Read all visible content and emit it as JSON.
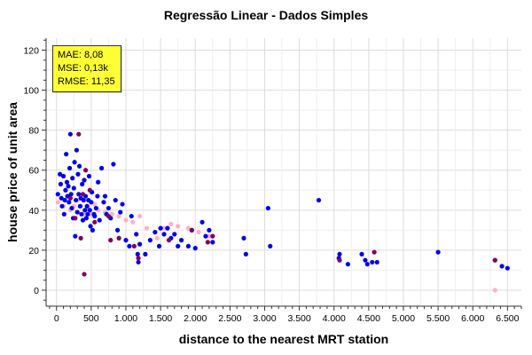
{
  "chart_data": {
    "type": "scatter",
    "title": "Regressão Linear - Dados Simples",
    "xlabel": "distance to the nearest MRT station",
    "ylabel": "house price of unit area",
    "xlim": [
      -150,
      6700
    ],
    "ylim": [
      -8,
      126
    ],
    "grid": true,
    "x_ticks": [
      {
        "value": 0,
        "label": "0"
      },
      {
        "value": 500,
        "label": "500"
      },
      {
        "value": 1000,
        "label": "1.000"
      },
      {
        "value": 1500,
        "label": "1.500"
      },
      {
        "value": 2000,
        "label": "2.000"
      },
      {
        "value": 2500,
        "label": "2.500"
      },
      {
        "value": 3000,
        "label": "3.000"
      },
      {
        "value": 3500,
        "label": "3.500"
      },
      {
        "value": 4000,
        "label": "4.000"
      },
      {
        "value": 4500,
        "label": "4.500"
      },
      {
        "value": 5000,
        "label": "5.000"
      },
      {
        "value": 5500,
        "label": "5.500"
      },
      {
        "value": 6000,
        "label": "6.000"
      },
      {
        "value": 6500,
        "label": "6.500"
      }
    ],
    "y_ticks": [
      {
        "value": 0,
        "label": "0"
      },
      {
        "value": 20,
        "label": "20"
      },
      {
        "value": 40,
        "label": "40"
      },
      {
        "value": 60,
        "label": "60"
      },
      {
        "value": 80,
        "label": "80"
      },
      {
        "value": 100,
        "label": "100"
      },
      {
        "value": 120,
        "label": "120"
      }
    ],
    "series": [
      {
        "color": "#0000ee",
        "points": [
          [
            20,
            48
          ],
          [
            50,
            58
          ],
          [
            60,
            53
          ],
          [
            70,
            46
          ],
          [
            80,
            42
          ],
          [
            100,
            57
          ],
          [
            110,
            38
          ],
          [
            120,
            45
          ],
          [
            130,
            50
          ],
          [
            140,
            68
          ],
          [
            150,
            54
          ],
          [
            160,
            47
          ],
          [
            170,
            52
          ],
          [
            180,
            44
          ],
          [
            190,
            61
          ],
          [
            200,
            78
          ],
          [
            210,
            48
          ],
          [
            220,
            41
          ],
          [
            230,
            56
          ],
          [
            240,
            36
          ],
          [
            250,
            51
          ],
          [
            260,
            64
          ],
          [
            270,
            27
          ],
          [
            280,
            45
          ],
          [
            290,
            70
          ],
          [
            300,
            39
          ],
          [
            310,
            58
          ],
          [
            320,
            48
          ],
          [
            330,
            62
          ],
          [
            340,
            42
          ],
          [
            350,
            46
          ],
          [
            360,
            38
          ],
          [
            370,
            53
          ],
          [
            380,
            35
          ],
          [
            390,
            45
          ],
          [
            400,
            55
          ],
          [
            410,
            40
          ],
          [
            420,
            47
          ],
          [
            430,
            36
          ],
          [
            440,
            42
          ],
          [
            450,
            38
          ],
          [
            460,
            45
          ],
          [
            470,
            57
          ],
          [
            480,
            40
          ],
          [
            490,
            32
          ],
          [
            500,
            44
          ],
          [
            510,
            49
          ],
          [
            520,
            30
          ],
          [
            540,
            38
          ],
          [
            550,
            37
          ],
          [
            570,
            41
          ],
          [
            590,
            47
          ],
          [
            600,
            54
          ],
          [
            620,
            35
          ],
          [
            650,
            61
          ],
          [
            680,
            44
          ],
          [
            700,
            47
          ],
          [
            720,
            38
          ],
          [
            750,
            41
          ],
          [
            780,
            36
          ],
          [
            820,
            63
          ],
          [
            850,
            45
          ],
          [
            880,
            30
          ],
          [
            920,
            39
          ],
          [
            950,
            43
          ],
          [
            1000,
            25
          ],
          [
            1050,
            22
          ],
          [
            1080,
            37
          ],
          [
            1150,
            28
          ],
          [
            1170,
            18
          ],
          [
            1180,
            14
          ],
          [
            1200,
            23
          ],
          [
            1280,
            18
          ],
          [
            1350,
            25
          ],
          [
            1420,
            29
          ],
          [
            1480,
            22
          ],
          [
            1500,
            31
          ],
          [
            1550,
            28
          ],
          [
            1600,
            31
          ],
          [
            1650,
            26
          ],
          [
            1700,
            28
          ],
          [
            1750,
            22
          ],
          [
            1800,
            25
          ],
          [
            1900,
            22
          ],
          [
            1950,
            30
          ],
          [
            2000,
            21
          ],
          [
            2100,
            34
          ],
          [
            2150,
            27
          ],
          [
            2200,
            30
          ],
          [
            2250,
            24
          ],
          [
            2700,
            26
          ],
          [
            2730,
            18
          ],
          [
            3050,
            41
          ],
          [
            3080,
            22
          ],
          [
            3780,
            45
          ],
          [
            4070,
            16
          ],
          [
            4080,
            18
          ],
          [
            4200,
            13
          ],
          [
            4400,
            18
          ],
          [
            4450,
            15
          ],
          [
            4480,
            13
          ],
          [
            4550,
            14
          ],
          [
            4620,
            14
          ],
          [
            5500,
            19
          ],
          [
            6320,
            15
          ],
          [
            6420,
            12
          ],
          [
            6500,
            11
          ]
        ]
      },
      {
        "color": "#800060",
        "points": [
          [
            200,
            46
          ],
          [
            270,
            36
          ],
          [
            320,
            78
          ],
          [
            350,
            26
          ],
          [
            380,
            48
          ],
          [
            400,
            8
          ],
          [
            420,
            60
          ],
          [
            480,
            50
          ],
          [
            550,
            34
          ],
          [
            750,
            37
          ],
          [
            780,
            25
          ],
          [
            900,
            26
          ],
          [
            1120,
            22
          ],
          [
            1180,
            16
          ],
          [
            1620,
            25
          ],
          [
            1950,
            30
          ],
          [
            2180,
            24
          ],
          [
            2250,
            27
          ],
          [
            4080,
            15
          ],
          [
            4580,
            19
          ],
          [
            6320,
            15
          ]
        ]
      },
      {
        "color": "#ffb0c8",
        "points": [
          [
            20,
            44
          ],
          [
            100,
            42
          ],
          [
            150,
            47
          ],
          [
            200,
            40
          ],
          [
            250,
            42
          ],
          [
            300,
            45
          ],
          [
            350,
            42
          ],
          [
            400,
            38
          ],
          [
            450,
            41
          ],
          [
            500,
            38
          ],
          [
            550,
            43
          ],
          [
            600,
            40
          ],
          [
            700,
            39
          ],
          [
            800,
            38
          ],
          [
            900,
            37
          ],
          [
            1000,
            35
          ],
          [
            1100,
            34
          ],
          [
            1200,
            37
          ],
          [
            1300,
            31
          ],
          [
            1450,
            26
          ],
          [
            1550,
            31
          ],
          [
            1650,
            33
          ],
          [
            1750,
            32
          ],
          [
            1900,
            31
          ],
          [
            2050,
            29
          ],
          [
            2200,
            27
          ],
          [
            6320,
            0
          ]
        ]
      }
    ]
  },
  "stats_box": {
    "mae": "MAE: 8,08",
    "mse": "MSE: 0,13k",
    "rmse": "RMSE: 11,35"
  },
  "colors": {
    "grid": "#dcdcdc",
    "axis": "#333333",
    "stats_bg": "#ffff33"
  }
}
